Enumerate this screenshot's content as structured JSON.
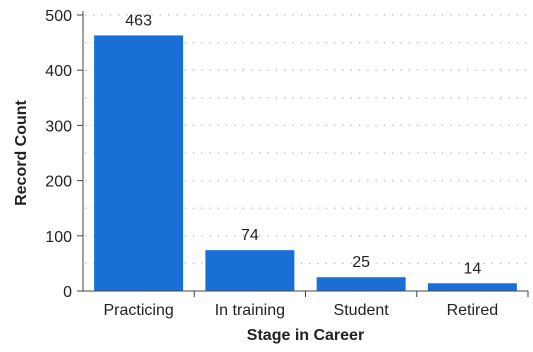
{
  "chart_data": {
    "type": "bar",
    "title": "",
    "xlabel": "Stage in Career",
    "ylabel": "Record Count",
    "categories": [
      "Practicing",
      "In training",
      "Student",
      "Retired"
    ],
    "values": [
      463,
      74,
      25,
      14
    ],
    "data_labels": [
      "463",
      "74",
      "25",
      "14"
    ],
    "ylim": [
      0,
      500
    ],
    "yticks": [
      0,
      100,
      200,
      300,
      400,
      500
    ],
    "ytick_labels": [
      "0",
      "100",
      "200",
      "300",
      "400",
      "500"
    ],
    "bar_color": "#1a6fd6",
    "grid": "dotted horizontal",
    "legend": "none"
  }
}
